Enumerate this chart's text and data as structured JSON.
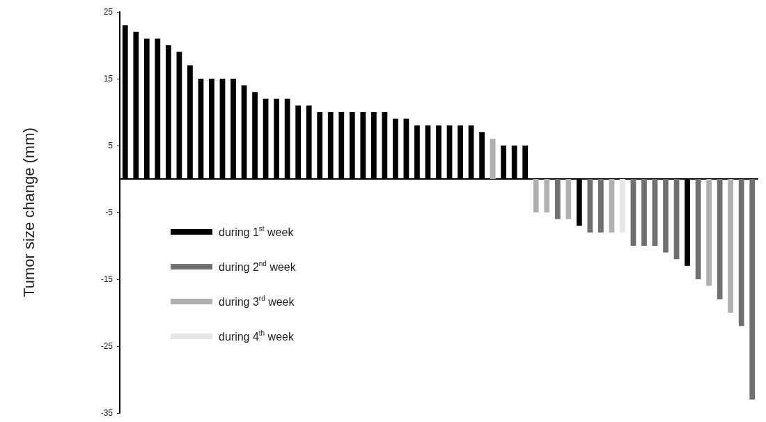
{
  "chart_data": {
    "type": "bar",
    "ylabel": "Tumor size change (mm)",
    "categories": [
      null,
      null,
      null,
      null,
      null,
      null,
      null,
      null,
      null,
      null,
      null,
      null,
      null,
      null,
      null,
      null,
      null,
      null,
      null,
      null,
      null,
      null,
      null,
      null,
      null,
      null,
      null,
      null,
      null,
      null,
      null,
      null,
      null,
      null,
      null,
      null,
      null,
      null,
      null,
      null,
      null,
      null,
      null,
      null,
      null,
      null,
      null,
      null,
      null,
      null,
      null,
      null,
      null,
      null,
      null,
      null,
      null,
      null,
      null
    ],
    "series": [
      {
        "name": "during 1$^{st}$ week",
        "color": "#000000",
        "values": [
          23,
          22,
          21,
          21,
          20,
          19,
          17,
          15,
          15,
          15,
          15,
          14,
          13,
          12,
          12,
          12,
          11,
          11,
          10,
          10,
          10,
          10,
          10,
          10,
          10,
          9,
          9,
          8,
          8,
          8,
          8,
          8,
          8,
          7,
          null,
          5,
          5,
          5,
          null,
          null,
          null,
          null,
          -7,
          null,
          null,
          null,
          null,
          null,
          null,
          null,
          null,
          null,
          -13,
          null,
          null,
          null,
          null,
          null,
          null
        ]
      },
      {
        "name": "during 2$^{nd}$ week",
        "color": "#707070",
        "values": [
          null,
          null,
          null,
          null,
          null,
          null,
          null,
          null,
          null,
          null,
          null,
          null,
          null,
          null,
          null,
          null,
          null,
          null,
          null,
          null,
          null,
          null,
          null,
          null,
          null,
          null,
          null,
          null,
          null,
          null,
          null,
          null,
          null,
          null,
          null,
          null,
          null,
          null,
          null,
          null,
          -6,
          null,
          null,
          -8,
          -8,
          null,
          null,
          -10,
          -10,
          -10,
          -11,
          -12,
          null,
          -15,
          null,
          -18,
          null,
          -22,
          -33
        ]
      },
      {
        "name": "during 3$^{rd}$ week",
        "color": "#b0b0b0",
        "values": [
          null,
          null,
          null,
          null,
          null,
          null,
          null,
          null,
          null,
          null,
          null,
          null,
          null,
          null,
          null,
          null,
          null,
          null,
          null,
          null,
          null,
          null,
          null,
          null,
          null,
          null,
          null,
          null,
          null,
          null,
          null,
          null,
          null,
          null,
          6,
          null,
          null,
          null,
          -5,
          -5,
          null,
          -6,
          null,
          null,
          null,
          -8,
          null,
          null,
          null,
          null,
          null,
          null,
          null,
          null,
          -16,
          null,
          -20,
          null,
          null
        ]
      },
      {
        "name": "during 4$^{th}$ week",
        "color": "#e6e6e6",
        "values": [
          null,
          null,
          null,
          null,
          null,
          null,
          null,
          null,
          null,
          null,
          null,
          null,
          null,
          null,
          null,
          null,
          null,
          null,
          null,
          null,
          null,
          null,
          null,
          null,
          null,
          null,
          null,
          null,
          null,
          null,
          null,
          null,
          null,
          null,
          null,
          null,
          null,
          null,
          null,
          null,
          null,
          null,
          null,
          null,
          null,
          null,
          -8,
          null,
          null,
          null,
          null,
          null,
          null,
          null,
          null,
          null,
          null,
          null,
          null
        ]
      }
    ],
    "ylim": [
      -35,
      25
    ],
    "yticks": [
      25,
      15,
      5,
      -5,
      -15,
      -25,
      -35
    ],
    "grid": false,
    "legend": "left"
  }
}
